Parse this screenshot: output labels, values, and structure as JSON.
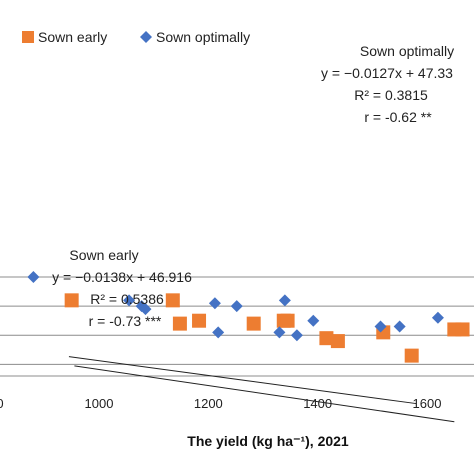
{
  "chart_data": {
    "type": "scatter",
    "xlabel": "The yield (kg ha⁻¹), 2021",
    "x_ticks": [
      1000,
      1200,
      1400,
      1600
    ],
    "x_partial_tick": "0",
    "xlim": [
      835,
      1690
    ],
    "ylim": [
      32,
      52
    ],
    "grid": "horizontal",
    "legend_position": "top-left",
    "series": [
      {
        "name": "Sown early",
        "marker": "square",
        "color": "#ED7D31",
        "points": [
          [
            950,
            45.0
          ],
          [
            1135,
            45.0
          ],
          [
            1148,
            41.0
          ],
          [
            1183,
            41.5
          ],
          [
            1283,
            41.0
          ],
          [
            1338,
            41.5
          ],
          [
            1345,
            41.5
          ],
          [
            1416,
            38.5
          ],
          [
            1437,
            38.0
          ],
          [
            1520,
            39.5
          ],
          [
            1572,
            35.5
          ],
          [
            1650,
            40.0
          ],
          [
            1665,
            40.0
          ]
        ]
      },
      {
        "name": "Sown optimally",
        "marker": "diamond",
        "color": "#4472C4",
        "points": [
          [
            880,
            49.0
          ],
          [
            1055,
            45.0
          ],
          [
            1078,
            44.0
          ],
          [
            1085,
            43.5
          ],
          [
            1212,
            44.5
          ],
          [
            1218,
            39.5
          ],
          [
            1252,
            44.0
          ],
          [
            1330,
            39.5
          ],
          [
            1340,
            45.0
          ],
          [
            1362,
            39.0
          ],
          [
            1392,
            41.5
          ],
          [
            1515,
            40.5
          ],
          [
            1550,
            40.5
          ],
          [
            1620,
            42.0
          ]
        ]
      }
    ],
    "trendlines": [
      {
        "series": "Sown early",
        "slope": -0.0138,
        "intercept": 46.916,
        "x_range": [
          955,
          1650
        ],
        "color": "#222222"
      },
      {
        "series": "Sown optimally",
        "slope": -0.0127,
        "intercept": 47.33,
        "x_range": [
          945,
          1580
        ],
        "color": "#222222"
      }
    ],
    "annotations": [
      {
        "lines": [
          "Sown optimally",
          "y = −0.0127x + 47.33",
          "R² = 0.3815",
          "r = -0.62 **"
        ],
        "anchor": "right-upper"
      },
      {
        "lines": [
          "Sown early",
          "y = −0.0138x + 46.916",
          "R² = 0.5386",
          "r = -0.73 ***"
        ],
        "anchor": "left-lower"
      }
    ]
  }
}
